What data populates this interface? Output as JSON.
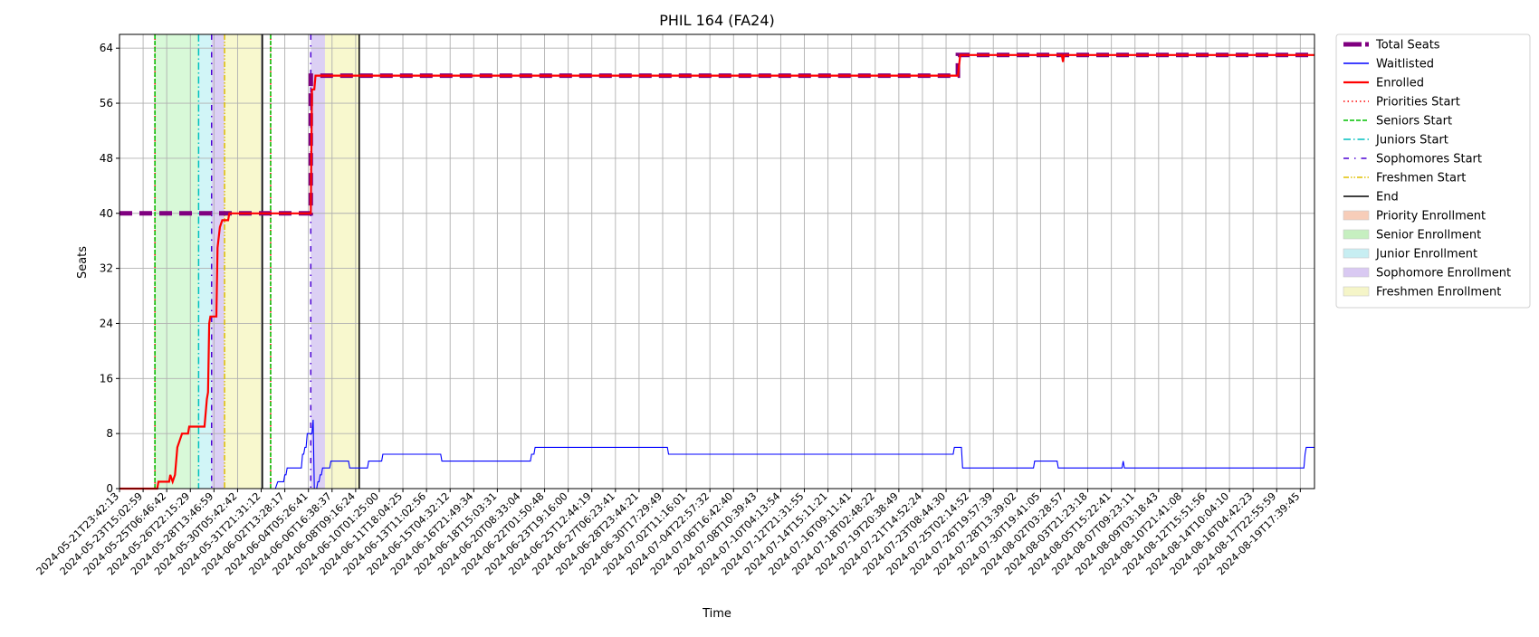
{
  "chart_data": {
    "type": "line",
    "title": "PHIL 164 (FA24)",
    "xlabel": "Time",
    "ylabel": "Seats",
    "ylim": [
      0,
      66
    ],
    "yticks": [
      0,
      8,
      16,
      24,
      32,
      40,
      48,
      56,
      64
    ],
    "grid": true,
    "legend_position": "outside-right",
    "x_tick_labels": [
      "2024-05-21T23:42:13",
      "2024-05-23T15:02:59",
      "2024-05-25T06:46:42",
      "2024-05-26T22:15:29",
      "2024-05-28T13:46:59",
      "2024-05-30T05:42:42",
      "2024-05-31T21:31:12",
      "2024-06-02T13:28:17",
      "2024-06-04T05:26:41",
      "2024-06-06T16:38:37",
      "2024-06-08T09:16:24",
      "2024-06-10T01:25:00",
      "2024-06-11T18:04:25",
      "2024-06-13T11:02:56",
      "2024-06-15T04:32:12",
      "2024-06-16T21:49:34",
      "2024-06-18T15:03:31",
      "2024-06-20T08:33:04",
      "2024-06-22T01:50:48",
      "2024-06-23T19:16:00",
      "2024-06-25T12:44:19",
      "2024-06-27T06:23:41",
      "2024-06-28T23:44:21",
      "2024-06-30T17:29:49",
      "2024-07-02T11:16:01",
      "2024-07-04T22:57:32",
      "2024-07-06T16:42:40",
      "2024-07-08T10:39:43",
      "2024-07-10T04:13:54",
      "2024-07-12T21:31:55",
      "2024-07-14T15:11:21",
      "2024-07-16T09:11:41",
      "2024-07-18T02:48:22",
      "2024-07-19T20:38:49",
      "2024-07-21T14:52:24",
      "2024-07-23T08:44:30",
      "2024-07-25T02:14:52",
      "2024-07-26T19:57:39",
      "2024-07-28T13:39:02",
      "2024-07-30T19:41:05",
      "2024-08-02T03:28:57",
      "2024-08-03T21:23:18",
      "2024-08-05T15:22:41",
      "2024-08-07T09:23:11",
      "2024-08-09T03:18:43",
      "2024-08-10T21:41:08",
      "2024-08-12T15:51:56",
      "2024-08-14T10:04:10",
      "2024-08-16T04:42:23",
      "2024-08-17T22:55:59",
      "2024-08-19T17:39:45"
    ],
    "x_index_range": [
      0,
      50.6
    ],
    "series": [
      {
        "name": "Total Seats",
        "color": "#800080",
        "style": "dashed-thick",
        "points": [
          [
            0,
            40
          ],
          [
            8.1,
            40
          ],
          [
            8.1,
            60
          ],
          [
            35.5,
            60
          ],
          [
            35.5,
            63
          ],
          [
            50.6,
            63
          ]
        ]
      },
      {
        "name": "Waitlisted",
        "color": "#0000ff",
        "style": "solid-thin",
        "points": [
          [
            0,
            0
          ],
          [
            6.6,
            0
          ],
          [
            6.7,
            1
          ],
          [
            6.95,
            1
          ],
          [
            7.0,
            2
          ],
          [
            7.05,
            2
          ],
          [
            7.1,
            3
          ],
          [
            7.7,
            3
          ],
          [
            7.75,
            5
          ],
          [
            7.8,
            5
          ],
          [
            7.85,
            6
          ],
          [
            7.9,
            6
          ],
          [
            7.95,
            8
          ],
          [
            8.15,
            8
          ],
          [
            8.2,
            10
          ],
          [
            8.25,
            0
          ],
          [
            8.35,
            0
          ],
          [
            8.4,
            1
          ],
          [
            8.45,
            1
          ],
          [
            8.5,
            2
          ],
          [
            8.55,
            2
          ],
          [
            8.6,
            3
          ],
          [
            8.9,
            3
          ],
          [
            8.95,
            4
          ],
          [
            9.7,
            4
          ],
          [
            9.75,
            3
          ],
          [
            10.5,
            3
          ],
          [
            10.55,
            4
          ],
          [
            11.1,
            4
          ],
          [
            11.15,
            5
          ],
          [
            13.6,
            5
          ],
          [
            13.65,
            4
          ],
          [
            17.4,
            4
          ],
          [
            17.45,
            5
          ],
          [
            17.55,
            5
          ],
          [
            17.6,
            6
          ],
          [
            23.2,
            6
          ],
          [
            23.25,
            5
          ],
          [
            35.3,
            5
          ],
          [
            35.35,
            6
          ],
          [
            35.65,
            6
          ],
          [
            35.7,
            3
          ],
          [
            38.7,
            3
          ],
          [
            38.75,
            4
          ],
          [
            39.7,
            4
          ],
          [
            39.75,
            3
          ],
          [
            42.45,
            3
          ],
          [
            42.5,
            4
          ],
          [
            42.55,
            3
          ],
          [
            50.15,
            3
          ],
          [
            50.2,
            5
          ],
          [
            50.25,
            6
          ],
          [
            50.6,
            6
          ]
        ]
      },
      {
        "name": "Enrolled",
        "color": "#ff0000",
        "style": "solid-thick",
        "points": [
          [
            0,
            0
          ],
          [
            1.6,
            0
          ],
          [
            1.65,
            1
          ],
          [
            2.1,
            1
          ],
          [
            2.15,
            2
          ],
          [
            2.25,
            1
          ],
          [
            2.35,
            2
          ],
          [
            2.45,
            6
          ],
          [
            2.55,
            7
          ],
          [
            2.65,
            8
          ],
          [
            2.9,
            8
          ],
          [
            2.95,
            9
          ],
          [
            3.6,
            9
          ],
          [
            3.7,
            13
          ],
          [
            3.75,
            14
          ],
          [
            3.8,
            24
          ],
          [
            3.85,
            25
          ],
          [
            4.1,
            25
          ],
          [
            4.15,
            35
          ],
          [
            4.25,
            38
          ],
          [
            4.35,
            39
          ],
          [
            4.6,
            39
          ],
          [
            4.65,
            40
          ],
          [
            8.1,
            40
          ],
          [
            8.15,
            58
          ],
          [
            8.25,
            58
          ],
          [
            8.3,
            60
          ],
          [
            35.5,
            60
          ],
          [
            35.6,
            63
          ],
          [
            39.9,
            63
          ],
          [
            39.95,
            62
          ],
          [
            40.0,
            63
          ],
          [
            50.6,
            63
          ]
        ]
      }
    ],
    "phase_lines": [
      {
        "name": "Priorities Start",
        "color": "#ff0000",
        "style": "dotted",
        "x": 1.5
      },
      {
        "name": "Seniors Start",
        "color": "#00c000",
        "style": "dashed",
        "x": 1.5
      },
      {
        "name": "Juniors Start",
        "color": "#00bfbf",
        "style": "dashdot",
        "x": 3.35
      },
      {
        "name": "Sophomores Start",
        "color": "#4b00d4",
        "style": "dashdot-sparse",
        "x": 3.9
      },
      {
        "name": "Freshmen Start",
        "color": "#e0c000",
        "style": "dashdotdot",
        "x": 4.45
      },
      {
        "name": "End",
        "color": "#000000",
        "style": "solid",
        "x": 6.05
      },
      {
        "name": "Priorities Start",
        "color": "#ff0000",
        "style": "dotted",
        "x": 6.4
      },
      {
        "name": "Seniors Start",
        "color": "#00c000",
        "style": "dashed",
        "x": 6.4
      },
      {
        "name": "Sophomores Start",
        "color": "#4b00d4",
        "style": "dashdot-sparse",
        "x": 8.1
      },
      {
        "name": "End",
        "color": "#000000",
        "style": "solid",
        "x": 10.15
      }
    ],
    "phase_spans": [
      {
        "name": "Senior Enrollment",
        "color": "#90ee90",
        "alpha": 0.35,
        "x0": 1.5,
        "x1": 3.35
      },
      {
        "name": "Junior Enrollment",
        "color": "#9ae8ee",
        "alpha": 0.45,
        "x0": 3.35,
        "x1": 3.9
      },
      {
        "name": "Sophomore Enrollment",
        "color": "#b296e6",
        "alpha": 0.45,
        "x0": 3.9,
        "x1": 4.45
      },
      {
        "name": "Freshmen Enrollment",
        "color": "#f2f2a6",
        "alpha": 0.55,
        "x0": 4.45,
        "x1": 6.05
      },
      {
        "name": "Sophomore Enrollment",
        "color": "#b296e6",
        "alpha": 0.45,
        "x0": 8.1,
        "x1": 8.7
      },
      {
        "name": "Freshmen Enrollment",
        "color": "#f2f2a6",
        "alpha": 0.55,
        "x0": 8.7,
        "x1": 10.15
      }
    ],
    "legend": [
      {
        "label": "Total Seats",
        "kind": "line",
        "color": "#800080",
        "style": "dashed-thick"
      },
      {
        "label": "Waitlisted",
        "kind": "line",
        "color": "#0000ff",
        "style": "solid-thin"
      },
      {
        "label": "Enrolled",
        "kind": "line",
        "color": "#ff0000",
        "style": "solid-thick"
      },
      {
        "label": "Priorities Start",
        "kind": "line",
        "color": "#ff0000",
        "style": "dotted"
      },
      {
        "label": "Seniors Start",
        "kind": "line",
        "color": "#00c000",
        "style": "dashed"
      },
      {
        "label": "Juniors Start",
        "kind": "line",
        "color": "#00bfbf",
        "style": "dashdot"
      },
      {
        "label": "Sophomores Start",
        "kind": "line",
        "color": "#4b00d4",
        "style": "dashdot-sparse"
      },
      {
        "label": "Freshmen Start",
        "kind": "line",
        "color": "#e0c000",
        "style": "dashdotdot"
      },
      {
        "label": "End",
        "kind": "line",
        "color": "#000000",
        "style": "solid"
      },
      {
        "label": "Priority Enrollment",
        "kind": "patch",
        "color": "#f7cdb9"
      },
      {
        "label": "Senior Enrollment",
        "kind": "patch",
        "color": "#c6efc0"
      },
      {
        "label": "Junior Enrollment",
        "kind": "patch",
        "color": "#c7eef2"
      },
      {
        "label": "Sophomore Enrollment",
        "kind": "patch",
        "color": "#d9c9f2"
      },
      {
        "label": "Freshmen Enrollment",
        "kind": "patch",
        "color": "#f5f5c8"
      }
    ]
  }
}
